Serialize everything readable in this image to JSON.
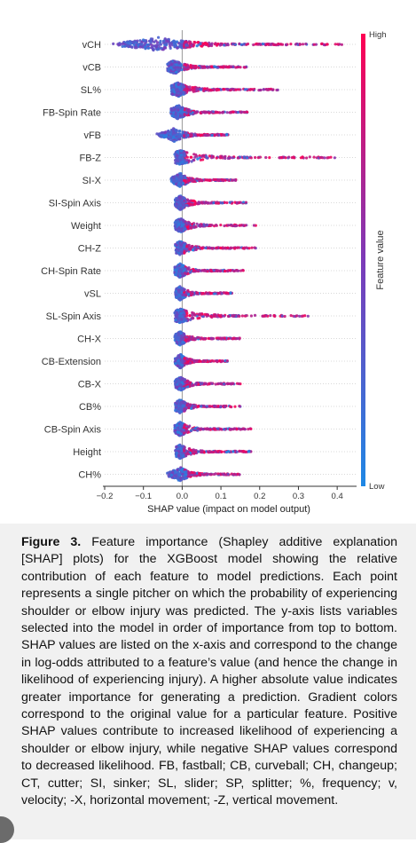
{
  "chart_data": {
    "type": "scatter",
    "subtype": "shap-beeswarm",
    "xlabel": "SHAP value (impact on model output)",
    "xlim": [
      -0.2,
      0.45
    ],
    "xticks": [
      -0.2,
      -0.1,
      0.0,
      0.1,
      0.2,
      0.3,
      0.4
    ],
    "xtick_labels": [
      "−0.2",
      "−0.1",
      "0.0",
      "0.1",
      "0.2",
      "0.3",
      "0.4"
    ],
    "colorbar": {
      "title": "Feature value",
      "high": "High",
      "low": "Low",
      "low_color": "#1e88e5",
      "high_color": "#ff0052"
    },
    "features": [
      {
        "name": "vCH",
        "min": -0.18,
        "max": 0.42,
        "peak": -0.06
      },
      {
        "name": "vCB",
        "min": -0.04,
        "max": 0.17,
        "peak": -0.02
      },
      {
        "name": "SL%",
        "min": -0.03,
        "max": 0.25,
        "peak": -0.01
      },
      {
        "name": "FB-Spin Rate",
        "min": -0.03,
        "max": 0.17,
        "peak": -0.01
      },
      {
        "name": "vFB",
        "min": -0.07,
        "max": 0.12,
        "peak": -0.02
      },
      {
        "name": "FB-Z",
        "min": -0.02,
        "max": 0.4,
        "peak": -0.005
      },
      {
        "name": "SI-X",
        "min": -0.03,
        "max": 0.14,
        "peak": -0.005
      },
      {
        "name": "SI-Spin Axis",
        "min": -0.02,
        "max": 0.17,
        "peak": -0.005
      },
      {
        "name": "Weight",
        "min": -0.02,
        "max": 0.19,
        "peak": -0.005
      },
      {
        "name": "CH-Z",
        "min": -0.02,
        "max": 0.19,
        "peak": -0.005
      },
      {
        "name": "CH-Spin Rate",
        "min": -0.02,
        "max": 0.16,
        "peak": -0.005
      },
      {
        "name": "vSL",
        "min": -0.02,
        "max": 0.13,
        "peak": -0.005
      },
      {
        "name": "SL-Spin Axis",
        "min": -0.02,
        "max": 0.33,
        "peak": -0.005
      },
      {
        "name": "CH-X",
        "min": -0.02,
        "max": 0.15,
        "peak": -0.005
      },
      {
        "name": "CB-Extension",
        "min": -0.02,
        "max": 0.12,
        "peak": -0.005
      },
      {
        "name": "CB-X",
        "min": -0.02,
        "max": 0.15,
        "peak": -0.005
      },
      {
        "name": "CB%",
        "min": -0.02,
        "max": 0.15,
        "peak": -0.005
      },
      {
        "name": "CB-Spin Axis",
        "min": -0.02,
        "max": 0.18,
        "peak": -0.005
      },
      {
        "name": "Height",
        "min": -0.02,
        "max": 0.18,
        "peak": -0.005
      },
      {
        "name": "CH%",
        "min": -0.04,
        "max": 0.15,
        "peak": -0.005
      }
    ]
  },
  "caption": {
    "label": "Figure 3.",
    "text": " Feature importance (Shapley additive explanation [SHAP] plots) for the XGBoost model showing the relative contribution of each feature to model predictions. Each point represents a single pitcher on which the probability of experiencing shoulder or elbow injury was predicted. The y-axis lists variables selected into the model in order of importance from top to bottom. SHAP values are listed on the x-axis and correspond to the change in log-odds attributed to a feature’s value (and hence the change in likelihood of experiencing injury). A higher absolute value indicates greater importance for generating a prediction. Gradient colors correspond to the original value for a particular feature. Positive SHAP values contribute to increased likelihood of experiencing a shoulder or elbow injury, while negative SHAP values correspond to decreased likelihood. FB, fastball; CB, curveball; CH, changeup; CT, cutter; SI, sinker; SL, slider; SP, splitter; %, frequency; v, velocity; -X, horizontal movement; -Z, vertical movement."
  }
}
